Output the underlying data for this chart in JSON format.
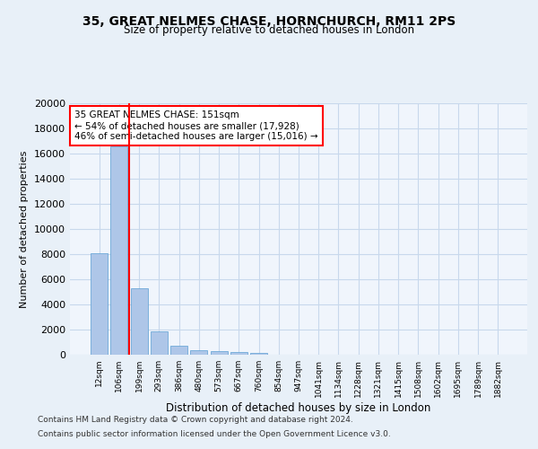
{
  "title_line1": "35, GREAT NELMES CHASE, HORNCHURCH, RM11 2PS",
  "title_line2": "Size of property relative to detached houses in London",
  "xlabel": "Distribution of detached houses by size in London",
  "ylabel": "Number of detached properties",
  "categories": [
    "12sqm",
    "106sqm",
    "199sqm",
    "293sqm",
    "386sqm",
    "480sqm",
    "573sqm",
    "667sqm",
    "760sqm",
    "854sqm",
    "947sqm",
    "1041sqm",
    "1134sqm",
    "1228sqm",
    "1321sqm",
    "1415sqm",
    "1508sqm",
    "1602sqm",
    "1695sqm",
    "1789sqm",
    "1882sqm"
  ],
  "values": [
    8100,
    16600,
    5300,
    1850,
    700,
    350,
    260,
    200,
    160,
    0,
    0,
    0,
    0,
    0,
    0,
    0,
    0,
    0,
    0,
    0,
    0
  ],
  "bar_color": "#aec6e8",
  "bar_edge_color": "#5a9fd4",
  "grid_color": "#c8d8ec",
  "annotation_box_text_line1": "35 GREAT NELMES CHASE: 151sqm",
  "annotation_box_text_line2": "← 54% of detached houses are smaller (17,928)",
  "annotation_box_text_line3": "46% of semi-detached houses are larger (15,016) →",
  "vline_position": 1.5,
  "ylim": [
    0,
    20000
  ],
  "yticks": [
    0,
    2000,
    4000,
    6000,
    8000,
    10000,
    12000,
    14000,
    16000,
    18000,
    20000
  ],
  "footer_line1": "Contains HM Land Registry data © Crown copyright and database right 2024.",
  "footer_line2": "Contains public sector information licensed under the Open Government Licence v3.0.",
  "background_color": "#e8f0f8",
  "plot_background_color": "#f0f5fc"
}
